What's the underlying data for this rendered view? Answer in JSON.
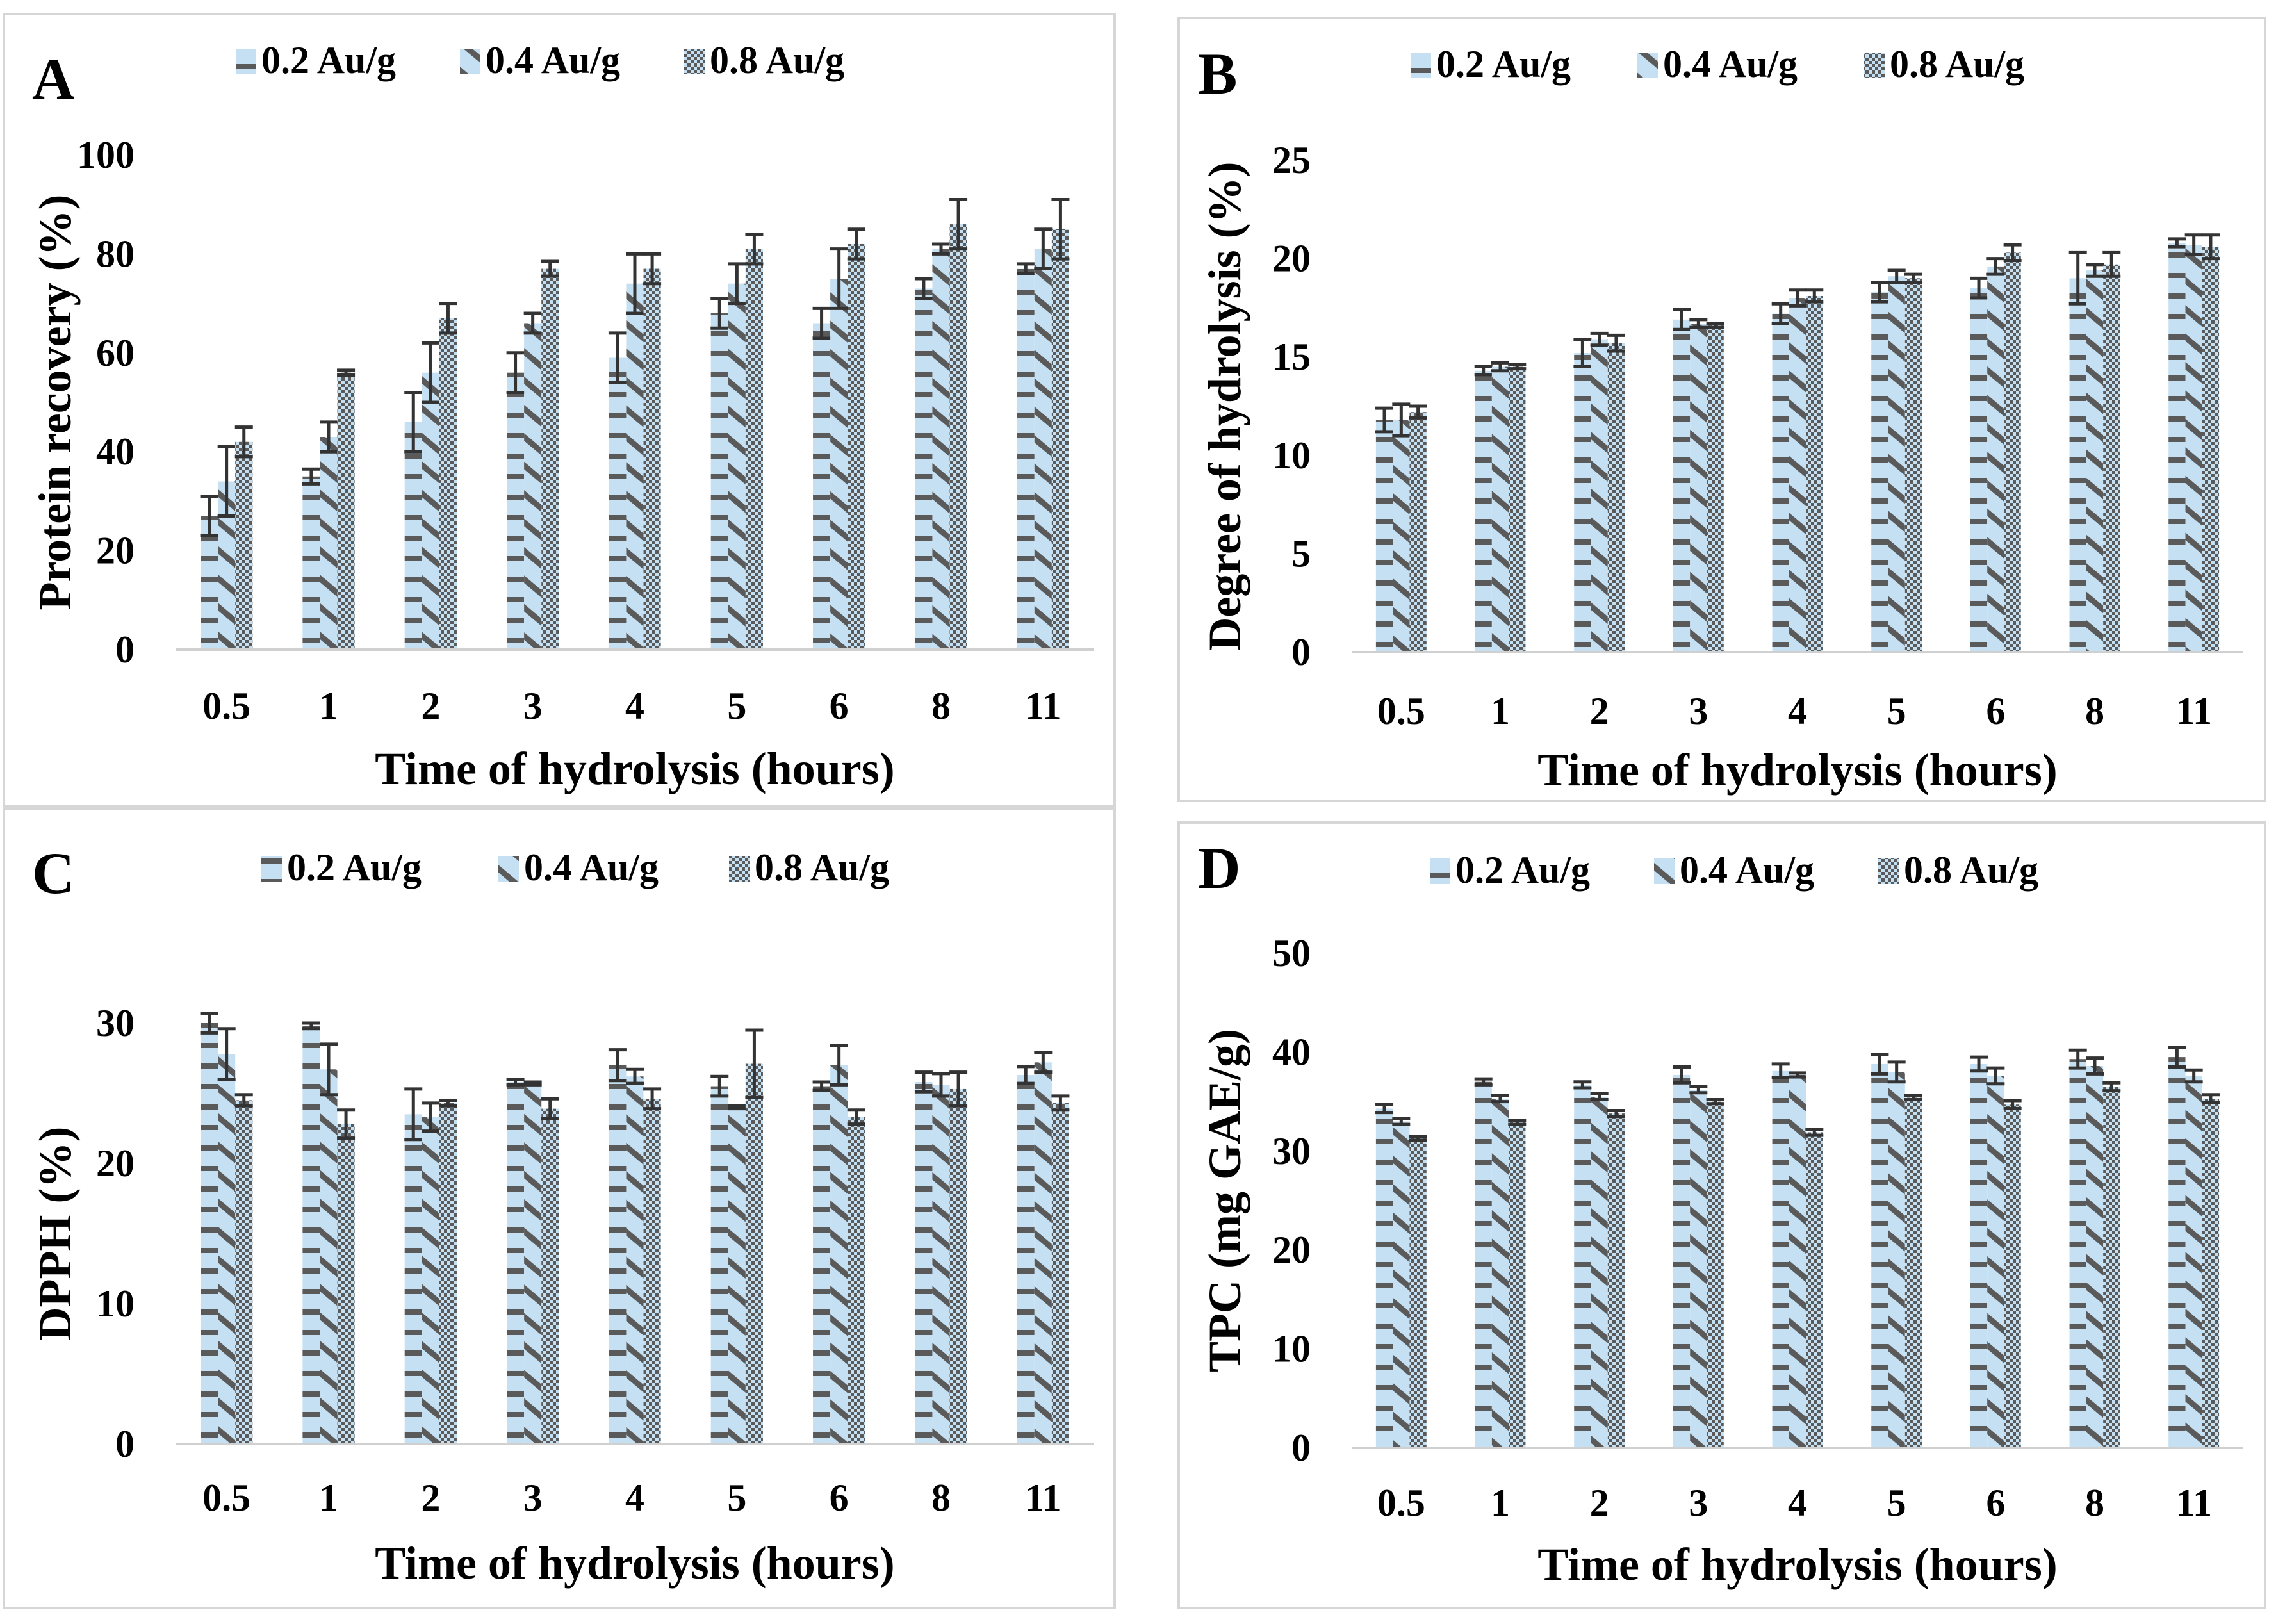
{
  "legend_labels": [
    "0.2 Au/g",
    "0.4 Au/g",
    "0.8 Au/g"
  ],
  "colors": {
    "fill_light": "#c5e0f3",
    "pattern_dark": "#5a5a5a",
    "error_bar": "#333333",
    "axis": "#d0d0d0",
    "frame": "#d6d6d6"
  },
  "chart_data": [
    {
      "type": "bar",
      "panel_label": "A",
      "title": "",
      "xlabel": "Time of hydrolysis (hours)",
      "ylabel": "Protein recovery (%)",
      "categories": [
        "0.5",
        "1",
        "2",
        "3",
        "4",
        "5",
        "6",
        "8",
        "11"
      ],
      "ylim": [
        0,
        100
      ],
      "yticks": [
        0,
        20,
        40,
        60,
        80,
        100
      ],
      "series": [
        {
          "name": "0.2 Au/g",
          "values": [
            27,
            35,
            46,
            56,
            59,
            68,
            66,
            73,
            77
          ],
          "errors": [
            4,
            1.5,
            6,
            4,
            5,
            3,
            3,
            2,
            1
          ]
        },
        {
          "name": "0.4 Au/g",
          "values": [
            34,
            43,
            56,
            66,
            74,
            74,
            75,
            81,
            81
          ],
          "errors": [
            7,
            3,
            6,
            2,
            6,
            4,
            6,
            1,
            4
          ]
        },
        {
          "name": "0.8 Au/g",
          "values": [
            42,
            56,
            67,
            77,
            77,
            81,
            82,
            86,
            85
          ],
          "errors": [
            3,
            0.5,
            3,
            1.5,
            3,
            3,
            3,
            5,
            6
          ]
        }
      ]
    },
    {
      "type": "bar",
      "panel_label": "B",
      "title": "",
      "xlabel": "Time of hydrolysis (hours)",
      "ylabel": "Degree of hydrolysis (%)",
      "categories": [
        "0.5",
        "1",
        "2",
        "3",
        "4",
        "5",
        "6",
        "8",
        "11"
      ],
      "ylim": [
        0,
        25
      ],
      "yticks": [
        0,
        5,
        10,
        15,
        20,
        25
      ],
      "series": [
        {
          "name": "0.2 Au/g",
          "values": [
            11.8,
            14.3,
            15.2,
            16.9,
            17.2,
            18.3,
            18.5,
            19.0,
            20.8
          ],
          "errors": [
            0.6,
            0.2,
            0.7,
            0.5,
            0.5,
            0.5,
            0.5,
            1.3,
            0.2
          ]
        },
        {
          "name": "0.4 Au/g",
          "values": [
            11.8,
            14.5,
            15.9,
            16.7,
            18.0,
            19.1,
            19.6,
            19.4,
            20.7
          ],
          "errors": [
            0.8,
            0.2,
            0.3,
            0.2,
            0.4,
            0.3,
            0.4,
            0.3,
            0.5
          ]
        },
        {
          "name": "0.8 Au/g",
          "values": [
            12.2,
            14.5,
            15.7,
            16.6,
            18.1,
            19.0,
            20.3,
            19.7,
            20.6
          ],
          "errors": [
            0.3,
            0.1,
            0.4,
            0.1,
            0.3,
            0.2,
            0.4,
            0.6,
            0.6
          ]
        }
      ]
    },
    {
      "type": "bar",
      "panel_label": "C",
      "title": "",
      "xlabel": "Time of hydrolysis (hours)",
      "ylabel": "DPPH (%)",
      "categories": [
        "0.5",
        "1",
        "2",
        "3",
        "4",
        "5",
        "6",
        "8",
        "11"
      ],
      "ylim": [
        0,
        30
      ],
      "yticks": [
        0,
        10,
        20,
        30
      ],
      "series": [
        {
          "name": "0.2 Au/g",
          "values": [
            30.0,
            29.8,
            23.5,
            25.8,
            27.0,
            25.5,
            25.5,
            25.8,
            26.3
          ],
          "errors": [
            0.7,
            0.2,
            1.8,
            0.2,
            1.1,
            0.7,
            0.3,
            0.7,
            0.6
          ]
        },
        {
          "name": "0.4 Au/g",
          "values": [
            27.8,
            26.7,
            23.3,
            25.7,
            26.2,
            24.0,
            27.0,
            25.6,
            27.2
          ],
          "errors": [
            1.8,
            1.8,
            1.0,
            0.1,
            0.5,
            0.1,
            1.4,
            0.8,
            0.7
          ]
        },
        {
          "name": "0.8 Au/g",
          "values": [
            24.5,
            22.8,
            24.3,
            23.9,
            24.6,
            27.1,
            23.3,
            25.3,
            24.3
          ],
          "errors": [
            0.4,
            1.0,
            0.2,
            0.7,
            0.7,
            2.4,
            0.5,
            1.2,
            0.5
          ]
        }
      ]
    },
    {
      "type": "bar",
      "panel_label": "D",
      "title": "",
      "xlabel": "Time of hydrolysis (hours)",
      "ylabel": "TPC (mg GAE/g)",
      "categories": [
        "0.5",
        "1",
        "2",
        "3",
        "4",
        "5",
        "6",
        "8",
        "11"
      ],
      "ylim": [
        0,
        50
      ],
      "yticks": [
        0,
        10,
        20,
        30,
        40,
        50
      ],
      "series": [
        {
          "name": "0.2 Au/g",
          "values": [
            34.3,
            37.0,
            36.7,
            37.7,
            38.1,
            38.8,
            38.8,
            39.3,
            39.5
          ],
          "errors": [
            0.4,
            0.3,
            0.3,
            0.8,
            0.7,
            1.0,
            0.7,
            0.9,
            1.0
          ]
        },
        {
          "name": "0.4 Au/g",
          "values": [
            33.0,
            35.3,
            35.5,
            36.2,
            37.7,
            38.0,
            37.6,
            38.6,
            37.6
          ],
          "errors": [
            0.3,
            0.3,
            0.3,
            0.3,
            0.2,
            1.0,
            0.8,
            0.8,
            0.6
          ]
        },
        {
          "name": "0.8 Au/g",
          "values": [
            31.3,
            32.9,
            33.8,
            35.0,
            31.9,
            35.4,
            34.7,
            36.5,
            35.3
          ],
          "errors": [
            0.2,
            0.2,
            0.3,
            0.2,
            0.3,
            0.2,
            0.4,
            0.4,
            0.4
          ]
        }
      ]
    }
  ]
}
